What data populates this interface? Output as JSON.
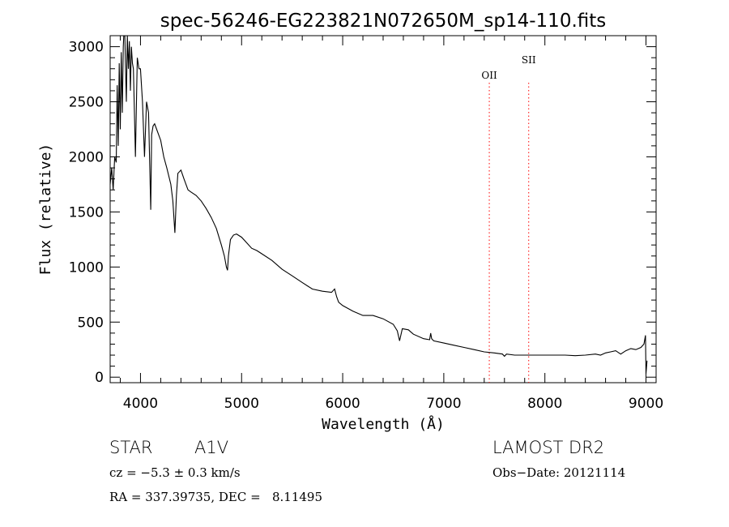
{
  "chart_data": {
    "type": "line",
    "title": "spec-56246-EG223821N072650M_sp14-110.fits",
    "xlabel": "Wavelength (Å)",
    "ylabel": "Flux (relative)",
    "xlim": [
      3700,
      9100
    ],
    "ylim": [
      -50,
      3100
    ],
    "xticks": [
      4000,
      5000,
      6000,
      7000,
      8000,
      9000
    ],
    "yticks": [
      0,
      500,
      1000,
      1500,
      2000,
      2500,
      3000
    ],
    "grid": false,
    "line_color": "#000000",
    "marker_color": "#ff0000",
    "series": [
      {
        "x": [
          3700,
          3715,
          3730,
          3745,
          3760,
          3770,
          3780,
          3790,
          3800,
          3810,
          3820,
          3830,
          3835,
          3845,
          3860,
          3870,
          3880,
          3890,
          3900,
          3910,
          3920,
          3930,
          3950,
          3968,
          3985,
          4000,
          4020,
          4040,
          4060,
          4080,
          4101,
          4110,
          4125,
          4140,
          4160,
          4180,
          4200,
          4230,
          4260,
          4300,
          4320,
          4340,
          4355,
          4370,
          4400,
          4430,
          4470,
          4500,
          4550,
          4600,
          4650,
          4700,
          4750,
          4800,
          4830,
          4850,
          4861,
          4870,
          4890,
          4920,
          4950,
          5000,
          5050,
          5100,
          5150,
          5200,
          5300,
          5400,
          5500,
          5600,
          5700,
          5800,
          5890,
          5920,
          5940,
          5960,
          6000,
          6100,
          6200,
          6300,
          6400,
          6500,
          6540,
          6563,
          6590,
          6650,
          6700,
          6800,
          6860,
          6870,
          6880,
          6900,
          7000,
          7100,
          7200,
          7300,
          7400,
          7500,
          7580,
          7600,
          7620,
          7700,
          7800,
          7900,
          8000,
          8100,
          8200,
          8300,
          8400,
          8500,
          8550,
          8600,
          8650,
          8700,
          8750,
          8800,
          8850,
          8900,
          8950,
          8980,
          8995,
          9000,
          9010
        ],
        "y": [
          1750,
          1900,
          1700,
          2000,
          1950,
          2650,
          2100,
          2850,
          2250,
          2950,
          2400,
          3000,
          3100,
          3200,
          2500,
          3150,
          2800,
          3050,
          2600,
          3000,
          2850,
          2800,
          2000,
          2900,
          2800,
          2800,
          2500,
          2000,
          2500,
          2400,
          1520,
          2200,
          2280,
          2300,
          2250,
          2200,
          2150,
          2000,
          1900,
          1750,
          1600,
          1310,
          1650,
          1850,
          1880,
          1800,
          1700,
          1680,
          1650,
          1600,
          1530,
          1450,
          1350,
          1200,
          1100,
          1000,
          970,
          1100,
          1250,
          1290,
          1300,
          1270,
          1220,
          1170,
          1150,
          1120,
          1060,
          980,
          920,
          860,
          800,
          780,
          770,
          800,
          730,
          680,
          650,
          600,
          560,
          560,
          530,
          480,
          420,
          330,
          440,
          430,
          390,
          350,
          340,
          400,
          350,
          330,
          310,
          290,
          270,
          250,
          230,
          220,
          210,
          190,
          210,
          200,
          200,
          200,
          200,
          200,
          200,
          195,
          200,
          210,
          200,
          220,
          230,
          240,
          210,
          240,
          260,
          250,
          270,
          300,
          380,
          30,
          150
        ]
      }
    ],
    "annotations": [
      {
        "label": "OII",
        "x": 7450
      },
      {
        "label": "SII",
        "x": 7840
      }
    ]
  },
  "info": {
    "class_label": "STAR",
    "subclass_label": "A1V",
    "redshift_text": "cz = −5.3 ± 0.3 km/s",
    "coords_text": "RA = 337.39735, DEC =   8.11495",
    "survey_label": "LAMOST DR2",
    "obs_date_text": "Obs−Date: 20121114"
  }
}
